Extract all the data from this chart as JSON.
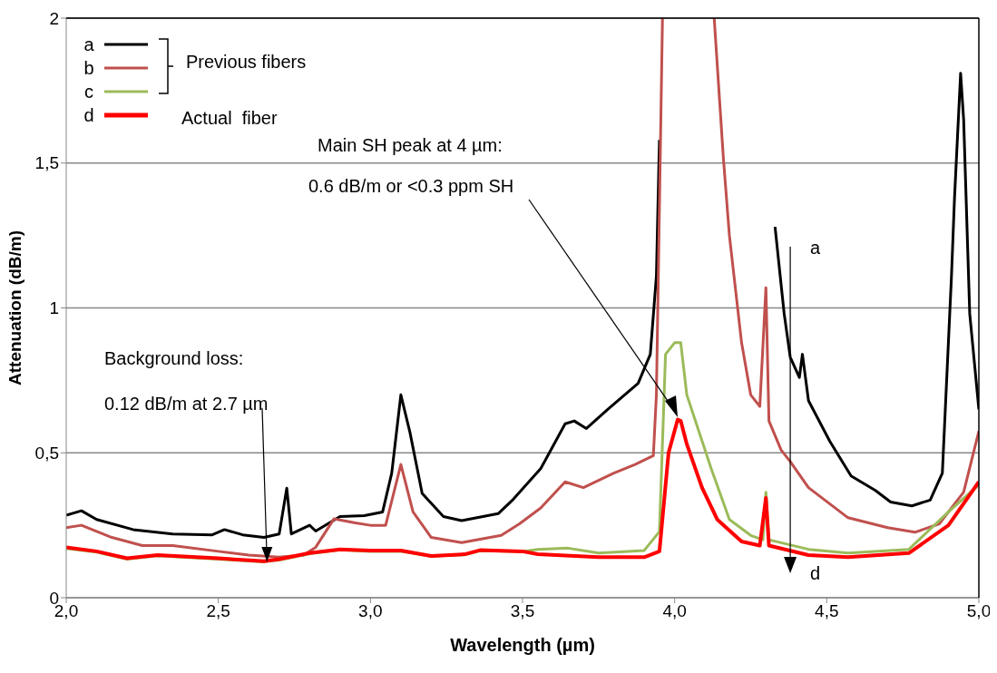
{
  "chart_data": {
    "type": "line",
    "xlabel": "Wavelength (µm)",
    "ylabel": "Attenuation (dB/m)",
    "xlim": [
      2,
      5
    ],
    "ylim": [
      0,
      2
    ],
    "xticks": [
      {
        "value": 2,
        "label": "2,0"
      },
      {
        "value": 2.5,
        "label": "2,5"
      },
      {
        "value": 3,
        "label": "3,0"
      },
      {
        "value": 3.5,
        "label": "3,5"
      },
      {
        "value": 4,
        "label": "4,0"
      },
      {
        "value": 4.5,
        "label": "4,5"
      },
      {
        "value": 5,
        "label": "5,0"
      }
    ],
    "yticks": [
      0,
      {
        "value": 0.5,
        "label": "0,5"
      },
      1,
      {
        "value": 1.5,
        "label": "1,5"
      },
      2
    ],
    "grid": "y",
    "legend": "top left",
    "marker": "none",
    "line_style": "solid",
    "annotations": [
      "Previous fibers",
      "Actual  fiber",
      "Main SH peak at 4 µm:",
      "0.6 dB/m or <0.3 ppm SH",
      "Background loss:",
      {
        "text": "0.12 dB/m at 2.7 µm",
        "x": 2.66,
        "y": 0.125
      },
      "a",
      "d"
    ],
    "series": [
      {
        "name": "a",
        "color": "#000000",
        "x": [
          2.0,
          2.05,
          2.1,
          2.22,
          2.35,
          2.48,
          2.52,
          2.58,
          2.65,
          2.7,
          2.725,
          2.74,
          2.8,
          2.82,
          2.9,
          2.98,
          3.04,
          3.07,
          3.1,
          3.13,
          3.17,
          3.24,
          3.3,
          3.42,
          3.47,
          3.56,
          3.64,
          3.67,
          3.71,
          3.78,
          3.88,
          3.92,
          3.94,
          3.95,
          3.96,
          4.33,
          4.36,
          4.38,
          4.41,
          4.42,
          4.44,
          4.51,
          4.58,
          4.66,
          4.71,
          4.78,
          4.84,
          4.88,
          4.91,
          4.92,
          4.94,
          4.95,
          4.97,
          5.0
        ],
        "values": [
          0.285,
          0.3,
          0.27,
          0.235,
          0.22,
          0.217,
          0.235,
          0.217,
          0.208,
          0.22,
          0.378,
          0.22,
          0.25,
          0.23,
          0.28,
          0.283,
          0.296,
          0.43,
          0.7,
          0.57,
          0.36,
          0.28,
          0.266,
          0.29,
          0.34,
          0.446,
          0.6,
          0.61,
          0.584,
          0.65,
          0.74,
          0.84,
          1.11,
          1.58,
          null,
          1.28,
          0.98,
          0.83,
          0.76,
          0.84,
          0.68,
          0.54,
          0.42,
          0.37,
          0.33,
          0.317,
          0.337,
          0.43,
          1.11,
          1.38,
          1.81,
          1.65,
          0.98,
          0.65
        ]
      },
      {
        "name": "b",
        "color": "#c0504d",
        "x": [
          2.0,
          2.05,
          2.15,
          2.25,
          2.35,
          2.5,
          2.6,
          2.7,
          2.78,
          2.82,
          2.88,
          2.95,
          3.0,
          3.05,
          3.1,
          3.14,
          3.2,
          3.3,
          3.43,
          3.49,
          3.56,
          3.64,
          3.7,
          3.8,
          3.87,
          3.93,
          3.94,
          3.96,
          4.0,
          4.13,
          4.16,
          4.18,
          4.22,
          4.25,
          4.28,
          4.3,
          4.31,
          4.35,
          4.38,
          4.44,
          4.57,
          4.7,
          4.79,
          4.87,
          4.95,
          5.0
        ],
        "values": [
          0.242,
          0.25,
          0.208,
          0.18,
          0.18,
          0.16,
          0.147,
          0.14,
          0.147,
          0.174,
          0.272,
          0.258,
          0.25,
          0.25,
          0.46,
          0.296,
          0.208,
          0.19,
          0.215,
          0.255,
          0.31,
          0.4,
          0.38,
          0.43,
          0.46,
          0.49,
          0.7,
          2.0,
          null,
          2.0,
          1.52,
          1.25,
          0.88,
          0.7,
          0.66,
          1.07,
          0.61,
          0.51,
          0.47,
          0.38,
          0.276,
          0.242,
          0.226,
          0.255,
          0.364,
          0.575
        ]
      },
      {
        "name": "c",
        "color": "#9bbb59",
        "x": [
          2.0,
          2.1,
          2.2,
          2.3,
          2.5,
          2.65,
          2.7,
          2.8,
          2.9,
          3.0,
          3.1,
          3.2,
          3.31,
          3.36,
          3.5,
          3.55,
          3.65,
          3.75,
          3.9,
          3.95,
          3.97,
          4.0,
          4.02,
          4.04,
          4.12,
          4.18,
          4.25,
          4.29,
          4.3,
          4.31,
          4.44,
          4.57,
          4.77,
          4.9,
          5.0
        ],
        "values": [
          0.17,
          0.157,
          0.133,
          0.145,
          0.133,
          0.124,
          0.13,
          0.152,
          0.165,
          0.16,
          0.16,
          0.143,
          0.148,
          0.162,
          0.16,
          0.167,
          0.171,
          0.154,
          0.163,
          0.228,
          0.84,
          0.88,
          0.88,
          0.7,
          0.446,
          0.27,
          0.215,
          0.2,
          0.364,
          0.2,
          0.167,
          0.154,
          0.167,
          0.296,
          0.39
        ]
      },
      {
        "name": "d",
        "color": "#ff0000",
        "x": [
          2.0,
          2.1,
          2.2,
          2.3,
          2.5,
          2.65,
          2.7,
          2.8,
          2.9,
          3.0,
          3.1,
          3.2,
          3.31,
          3.36,
          3.5,
          3.55,
          3.75,
          3.9,
          3.95,
          3.98,
          4.01,
          4.02,
          4.04,
          4.09,
          4.14,
          4.22,
          4.28,
          4.3,
          4.31,
          4.44,
          4.57,
          4.77,
          4.9,
          5.0
        ],
        "values": [
          0.174,
          0.16,
          0.136,
          0.147,
          0.136,
          0.126,
          0.133,
          0.154,
          0.167,
          0.163,
          0.163,
          0.144,
          0.15,
          0.164,
          0.16,
          0.15,
          0.14,
          0.14,
          0.16,
          0.5,
          0.615,
          0.61,
          0.53,
          0.38,
          0.27,
          0.194,
          0.18,
          0.344,
          0.18,
          0.147,
          0.14,
          0.154,
          0.25,
          0.4
        ]
      }
    ]
  }
}
